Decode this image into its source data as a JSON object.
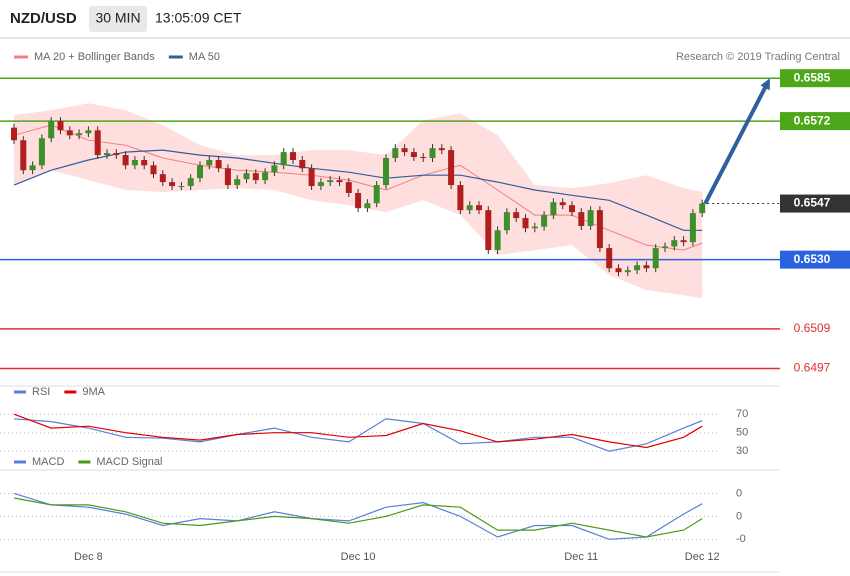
{
  "chart_data": [
    {
      "type": "candlestick",
      "title": "NZD/USD",
      "subtitle": "30 MIN",
      "time": "13:05:09 CET",
      "credit": "Research © 2019 Trading Central",
      "categories": [
        null,
        null,
        null,
        null,
        null,
        null,
        null,
        null,
        "Dec 8",
        null,
        null,
        null,
        null,
        null,
        null,
        null,
        null,
        null,
        null,
        null,
        null,
        null,
        null,
        null,
        null,
        null,
        null,
        null,
        null,
        null,
        null,
        null,
        null,
        null,
        null,
        null,
        null,
        "Dec 10",
        null,
        null,
        null,
        null,
        null,
        null,
        null,
        null,
        null,
        null,
        null,
        null,
        null,
        null,
        null,
        null,
        null,
        null,
        null,
        null,
        null,
        null,
        null,
        "Dec 11",
        null,
        null,
        null,
        null,
        null,
        null,
        null,
        null,
        null,
        null,
        null,
        null,
        "Dec 12"
      ],
      "open": [
        0.657,
        0.65662,
        0.65571,
        0.65586,
        0.65668,
        0.6572,
        0.65692,
        0.65677,
        0.65683,
        0.65692,
        0.65617,
        0.65623,
        0.65617,
        0.65586,
        0.65602,
        0.65586,
        0.65559,
        0.65535,
        0.65523,
        0.65523,
        0.65547,
        0.65586,
        0.65602,
        0.65577,
        0.65526,
        0.65544,
        0.65562,
        0.65541,
        0.65565,
        0.65586,
        0.65626,
        0.65602,
        0.65577,
        0.65523,
        0.65535,
        0.65541,
        0.65535,
        0.65502,
        0.65456,
        0.65471,
        0.65526,
        0.65608,
        0.65638,
        0.65626,
        0.65611,
        0.65608,
        0.65638,
        0.65632,
        0.65526,
        0.6545,
        0.65465,
        0.6545,
        0.65329,
        0.65389,
        0.65444,
        0.65426,
        0.65395,
        0.654,
        0.65435,
        0.65474,
        0.65465,
        0.65444,
        0.65402,
        0.6545,
        0.65335,
        0.65274,
        0.65262,
        0.65268,
        0.65283,
        0.65274,
        0.65335,
        0.6534,
        0.65359,
        0.65353,
        0.65441
      ],
      "high": [
        0.65712,
        0.65674,
        0.65598,
        0.6568,
        0.65732,
        0.65732,
        0.65704,
        0.65695,
        0.65704,
        0.65704,
        0.65635,
        0.65635,
        0.65629,
        0.65614,
        0.65614,
        0.65598,
        0.65571,
        0.65547,
        0.65535,
        0.65559,
        0.65598,
        0.65614,
        0.65614,
        0.65589,
        0.65556,
        0.65574,
        0.65574,
        0.65577,
        0.65598,
        0.65638,
        0.65638,
        0.65614,
        0.65589,
        0.65547,
        0.65553,
        0.65553,
        0.65547,
        0.65514,
        0.65483,
        0.65538,
        0.6562,
        0.6565,
        0.6565,
        0.65638,
        0.65623,
        0.6565,
        0.6565,
        0.65644,
        0.65538,
        0.65477,
        0.65477,
        0.65462,
        0.65401,
        0.65456,
        0.65456,
        0.65438,
        0.65412,
        0.65447,
        0.65486,
        0.65486,
        0.65477,
        0.65456,
        0.65462,
        0.65462,
        0.65347,
        0.65286,
        0.6528,
        0.65295,
        0.65295,
        0.65347,
        0.65352,
        0.65371,
        0.65371,
        0.65453,
        0.65482
      ],
      "low": [
        0.6565,
        0.65559,
        0.65559,
        0.65574,
        0.65656,
        0.6568,
        0.65665,
        0.65665,
        0.65671,
        0.65605,
        0.65605,
        0.65605,
        0.65574,
        0.65574,
        0.65574,
        0.65547,
        0.65523,
        0.65511,
        0.65511,
        0.65511,
        0.65535,
        0.65574,
        0.65565,
        0.65514,
        0.65514,
        0.65532,
        0.65529,
        0.65529,
        0.65553,
        0.65574,
        0.6559,
        0.65565,
        0.65511,
        0.65511,
        0.65523,
        0.65523,
        0.6549,
        0.65444,
        0.65444,
        0.65459,
        0.65514,
        0.65596,
        0.65614,
        0.65599,
        0.65596,
        0.65596,
        0.6562,
        0.65514,
        0.65438,
        0.65438,
        0.65438,
        0.65317,
        0.65317,
        0.65377,
        0.65414,
        0.65383,
        0.65383,
        0.65388,
        0.65423,
        0.65453,
        0.65432,
        0.6539,
        0.6539,
        0.65323,
        0.65262,
        0.6525,
        0.6525,
        0.65256,
        0.65262,
        0.65262,
        0.65323,
        0.65328,
        0.65341,
        0.65341,
        0.65429
      ],
      "close": [
        0.65662,
        0.65571,
        0.65586,
        0.65668,
        0.6572,
        0.65692,
        0.65677,
        0.65683,
        0.65692,
        0.65617,
        0.65623,
        0.65617,
        0.65586,
        0.65602,
        0.65586,
        0.65559,
        0.65535,
        0.65523,
        0.65523,
        0.65547,
        0.65586,
        0.65602,
        0.65577,
        0.65526,
        0.65544,
        0.65562,
        0.65541,
        0.65565,
        0.65586,
        0.65626,
        0.65602,
        0.65577,
        0.65523,
        0.65535,
        0.65541,
        0.65535,
        0.65502,
        0.65456,
        0.65471,
        0.65526,
        0.65608,
        0.65638,
        0.65626,
        0.65611,
        0.65608,
        0.65638,
        0.65632,
        0.65526,
        0.6545,
        0.65465,
        0.6545,
        0.65329,
        0.65389,
        0.65444,
        0.65426,
        0.65395,
        0.654,
        0.65435,
        0.65474,
        0.65465,
        0.65444,
        0.65402,
        0.6545,
        0.65335,
        0.65274,
        0.65262,
        0.65268,
        0.65283,
        0.65274,
        0.65335,
        0.6534,
        0.65359,
        0.65353,
        0.65441,
        0.6547
      ],
      "up_color": "#3d8f2a",
      "down_color": "#b01e1e",
      "x": [
        0,
        4,
        8,
        12,
        16,
        20,
        24,
        28,
        32,
        36,
        40,
        44,
        48,
        52,
        56,
        60,
        64,
        68,
        72,
        74
      ],
      "series": [
        {
          "name": "MA 20 + Bollinger Bands",
          "color": "#f08080",
          "band_color": "#ffdede",
          "values": [
            0.65677,
            0.65708,
            0.65662,
            0.65647,
            0.65608,
            0.65586,
            0.65571,
            0.65565,
            0.65556,
            0.65541,
            0.65511,
            0.65556,
            0.65586,
            0.65511,
            0.65435,
            0.65435,
            0.65389,
            0.65344,
            0.65329,
            0.6535
          ],
          "upper": [
            0.65738,
            0.65753,
            0.65774,
            0.65753,
            0.65708,
            0.65647,
            0.65617,
            0.65617,
            0.65632,
            0.65632,
            0.65617,
            0.65723,
            0.65744,
            0.65677,
            0.65526,
            0.65517,
            0.65532,
            0.65556,
            0.65517,
            0.65505
          ],
          "lower": [
            0.65526,
            0.65571,
            0.65541,
            0.65511,
            0.65505,
            0.65511,
            0.65517,
            0.65511,
            0.6548,
            0.65465,
            0.65444,
            0.6548,
            0.65435,
            0.65314,
            0.65329,
            0.65344,
            0.65253,
            0.65208,
            0.65192,
            0.65183
          ]
        },
        {
          "name": "MA 50",
          "color": "#2e5f9e",
          "values": [
            0.65526,
            0.65571,
            0.65602,
            0.65626,
            0.65632,
            0.65617,
            0.65608,
            0.65592,
            0.65577,
            0.65565,
            0.65547,
            0.65556,
            0.65556,
            0.65535,
            0.65511,
            0.65495,
            0.6548,
            0.65435,
            0.65389,
            0.65389
          ]
        }
      ],
      "ylim": [
        0.6492,
        0.6589
      ],
      "levels": [
        {
          "value": 0.6585,
          "label": "0.6585",
          "color": "#4ea61a",
          "style": "box"
        },
        {
          "value": 0.6572,
          "label": "0.6572",
          "color": "#4ea61a",
          "style": "box"
        },
        {
          "value": 0.6547,
          "label": "0.6547",
          "color": "#333333",
          "style": "box",
          "dotted": true
        },
        {
          "value": 0.653,
          "label": "0.6530",
          "color": "#2a62e0",
          "style": "box"
        },
        {
          "value": 0.6509,
          "label": "0.6509",
          "color": "#e03030",
          "style": "text"
        },
        {
          "value": 0.6497,
          "label": "0.6497",
          "color": "#e03030",
          "style": "text"
        }
      ],
      "arrow_target": 0.6585,
      "arrow_color": "#2e5f9e"
    },
    {
      "type": "line",
      "x": [
        0,
        4,
        8,
        12,
        16,
        20,
        24,
        28,
        32,
        36,
        40,
        44,
        48,
        52,
        56,
        60,
        64,
        68,
        72,
        74
      ],
      "series": [
        {
          "name": "RSI",
          "color": "#5b7fd6",
          "values": [
            65,
            62,
            55,
            45,
            44,
            40,
            48,
            55,
            45,
            40,
            65,
            60,
            38,
            40,
            45,
            45,
            30,
            38,
            55,
            63
          ]
        },
        {
          "name": "9MA",
          "color": "#e00000",
          "values": [
            70,
            55,
            57,
            50,
            45,
            42,
            48,
            50,
            50,
            45,
            47,
            60,
            52,
            40,
            43,
            48,
            40,
            34,
            45,
            57
          ]
        }
      ],
      "ylim": [
        15,
        80
      ],
      "yticks": [
        70,
        50,
        30
      ]
    },
    {
      "type": "line",
      "x": [
        0,
        4,
        8,
        12,
        16,
        20,
        24,
        28,
        32,
        36,
        40,
        44,
        48,
        52,
        56,
        60,
        64,
        68,
        72,
        74
      ],
      "series": [
        {
          "name": "MACD",
          "color": "#5b7fd6",
          "values": [
            0.001,
            0.0005,
            0.0004,
            0.0001,
            -0.0004,
            -0.0001,
            -0.0002,
            0.0002,
            -0.0001,
            -0.0002,
            0.0004,
            0.0006,
            0.0,
            -0.0009,
            -0.0004,
            -0.0004,
            -0.001,
            -0.0009,
            0.0001,
            0.00055
          ]
        },
        {
          "name": "MACD Signal",
          "color": "#4a9a1a",
          "values": [
            0.0008,
            0.0005,
            0.0005,
            0.0002,
            -0.0003,
            -0.0004,
            -0.0002,
            0.0,
            -0.0001,
            -0.0003,
            0.0,
            0.0005,
            0.0004,
            -0.0006,
            -0.0006,
            -0.0003,
            -0.0006,
            -0.0009,
            -0.0006,
            -0.0001
          ]
        }
      ],
      "ylim": [
        -0.0019,
        0.0018
      ],
      "yticks": [
        {
          "value": 0.001,
          "label": "0"
        },
        {
          "value": 0,
          "label": "0"
        },
        {
          "value": -0.001,
          "label": "-0"
        }
      ]
    }
  ]
}
